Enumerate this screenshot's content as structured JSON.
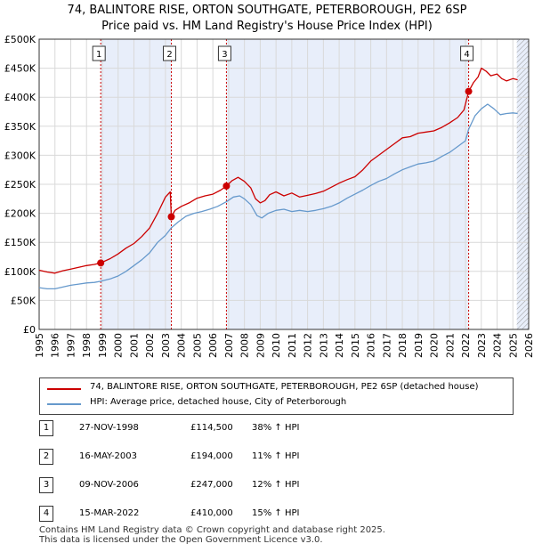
{
  "title_line1": "74, BALINTORE RISE, ORTON SOUTHGATE, PETERBOROUGH, PE2 6SP",
  "title_line2": "Price paid vs. HM Land Registry's House Price Index (HPI)",
  "colors": {
    "price_line": "#cc0000",
    "hpi_line": "#6699cc",
    "shade": "#e8eefa",
    "marker_line": "#cc0000",
    "grid": "#d9d9d9"
  },
  "legend": {
    "price_label": "74, BALINTORE RISE, ORTON SOUTHGATE, PETERBOROUGH, PE2 6SP (detached house)",
    "hpi_label": "HPI: Average price, detached house, City of Peterborough"
  },
  "sales": [
    {
      "num": "1",
      "date": "27-NOV-1998",
      "price": "£114,500",
      "hpi": "38% ↑ HPI"
    },
    {
      "num": "2",
      "date": "16-MAY-2003",
      "price": "£194,000",
      "hpi": "11% ↑ HPI"
    },
    {
      "num": "3",
      "date": "09-NOV-2006",
      "price": "£247,000",
      "hpi": "12% ↑ HPI"
    },
    {
      "num": "4",
      "date": "15-MAR-2022",
      "price": "£410,000",
      "hpi": "15% ↑ HPI"
    }
  ],
  "footer_line1": "Contains HM Land Registry data © Crown copyright and database right 2025.",
  "footer_line2": "This data is licensed under the Open Government Licence v3.0.",
  "chart_data": {
    "type": "line",
    "title": "Price paid vs. HM Land Registry's House Price Index (HPI)",
    "xlabel": "",
    "ylabel": "",
    "xlim": [
      1995,
      2026
    ],
    "ylim": [
      0,
      500000
    ],
    "x_ticks": [
      "1995",
      "1996",
      "1997",
      "1998",
      "1999",
      "2000",
      "2001",
      "2002",
      "2003",
      "2004",
      "2005",
      "2006",
      "2007",
      "2008",
      "2009",
      "2010",
      "2011",
      "2012",
      "2013",
      "2014",
      "2015",
      "2016",
      "2017",
      "2018",
      "2019",
      "2020",
      "2021",
      "2022",
      "2023",
      "2024",
      "2025",
      "2026"
    ],
    "y_ticks": [
      {
        "value": 0,
        "label": "£0"
      },
      {
        "value": 50000,
        "label": "£50K"
      },
      {
        "value": 100000,
        "label": "£100K"
      },
      {
        "value": 150000,
        "label": "£150K"
      },
      {
        "value": 200000,
        "label": "£200K"
      },
      {
        "value": 250000,
        "label": "£250K"
      },
      {
        "value": 300000,
        "label": "£300K"
      },
      {
        "value": 350000,
        "label": "£350K"
      },
      {
        "value": 400000,
        "label": "£400K"
      },
      {
        "value": 450000,
        "label": "£450K"
      },
      {
        "value": 500000,
        "label": "£500K"
      }
    ],
    "shaded_ranges": [
      [
        1998.9,
        2003.37
      ],
      [
        2006.86,
        2022.2
      ],
      [
        2025.25,
        2026
      ]
    ],
    "hatched_range": [
      2025.25,
      2026
    ],
    "series": [
      {
        "name": "74, BALINTORE RISE, ORTON SOUTHGATE, PETERBOROUGH, PE2 6SP (detached house)",
        "x": [
          1995.0,
          1995.5,
          1996.0,
          1996.5,
          1997.0,
          1997.5,
          1998.0,
          1998.5,
          1998.9,
          1999.5,
          2000.0,
          2000.5,
          2001.0,
          2001.5,
          2002.0,
          2002.5,
          2003.0,
          2003.3,
          2003.37,
          2003.6,
          2004.0,
          2004.5,
          2005.0,
          2005.5,
          2006.0,
          2006.5,
          2006.86,
          2007.2,
          2007.6,
          2008.0,
          2008.4,
          2008.7,
          2009.0,
          2009.3,
          2009.6,
          2010.0,
          2010.5,
          2011.0,
          2011.5,
          2012.0,
          2012.5,
          2013.0,
          2013.5,
          2014.0,
          2014.5,
          2015.0,
          2015.5,
          2016.0,
          2016.5,
          2017.0,
          2017.5,
          2018.0,
          2018.5,
          2019.0,
          2019.5,
          2020.0,
          2020.5,
          2021.0,
          2021.5,
          2021.9,
          2022.2,
          2022.5,
          2022.8,
          2023.0,
          2023.3,
          2023.6,
          2024.0,
          2024.3,
          2024.6,
          2025.0,
          2025.3
        ],
        "y": [
          102000,
          99000,
          97000,
          101000,
          104000,
          107000,
          110000,
          112000,
          114500,
          122000,
          130000,
          140000,
          148000,
          160000,
          175000,
          200000,
          228000,
          237000,
          194000,
          205000,
          212000,
          218000,
          226000,
          230000,
          233000,
          240000,
          247000,
          256000,
          262000,
          255000,
          244000,
          225000,
          218000,
          222000,
          232000,
          237000,
          230000,
          235000,
          228000,
          231000,
          234000,
          238000,
          245000,
          252000,
          258000,
          263000,
          275000,
          290000,
          300000,
          310000,
          320000,
          330000,
          332000,
          338000,
          340000,
          342000,
          348000,
          356000,
          365000,
          378000,
          410000,
          425000,
          435000,
          450000,
          445000,
          437000,
          440000,
          432000,
          428000,
          432000,
          430000
        ]
      },
      {
        "name": "HPI: Average price, detached house, City of Peterborough",
        "x": [
          1995.0,
          1995.5,
          1996.0,
          1996.5,
          1997.0,
          1997.5,
          1998.0,
          1998.5,
          1998.9,
          1999.5,
          2000.0,
          2000.5,
          2001.0,
          2001.5,
          2002.0,
          2002.5,
          2003.0,
          2003.37,
          2003.8,
          2004.3,
          2004.8,
          2005.3,
          2005.8,
          2006.3,
          2006.86,
          2007.3,
          2007.7,
          2008.0,
          2008.4,
          2008.8,
          2009.1,
          2009.5,
          2010.0,
          2010.5,
          2011.0,
          2011.5,
          2012.0,
          2012.5,
          2013.0,
          2013.5,
          2014.0,
          2014.5,
          2015.0,
          2015.5,
          2016.0,
          2016.5,
          2017.0,
          2017.5,
          2018.0,
          2018.5,
          2019.0,
          2019.5,
          2020.0,
          2020.5,
          2021.0,
          2021.5,
          2022.0,
          2022.2,
          2022.6,
          2023.0,
          2023.4,
          2023.8,
          2024.2,
          2024.6,
          2025.0,
          2025.3
        ],
        "y": [
          72000,
          70000,
          70000,
          73000,
          76000,
          78000,
          80000,
          81000,
          83000,
          87000,
          92000,
          100000,
          110000,
          120000,
          132000,
          150000,
          162000,
          175000,
          185000,
          195000,
          200000,
          203000,
          207000,
          212000,
          220000,
          228000,
          230000,
          225000,
          215000,
          196000,
          192000,
          200000,
          205000,
          207000,
          203000,
          205000,
          203000,
          205000,
          208000,
          212000,
          218000,
          226000,
          233000,
          240000,
          248000,
          255000,
          260000,
          268000,
          275000,
          280000,
          285000,
          287000,
          290000,
          298000,
          305000,
          315000,
          325000,
          345000,
          368000,
          380000,
          388000,
          380000,
          370000,
          372000,
          373000,
          372000
        ]
      }
    ],
    "sale_markers": [
      {
        "label": "1",
        "x": 1998.9,
        "y": 114500
      },
      {
        "label": "2",
        "x": 2003.37,
        "y": 194000
      },
      {
        "label": "3",
        "x": 2006.86,
        "y": 247000
      },
      {
        "label": "4",
        "x": 2022.2,
        "y": 410000
      }
    ]
  }
}
